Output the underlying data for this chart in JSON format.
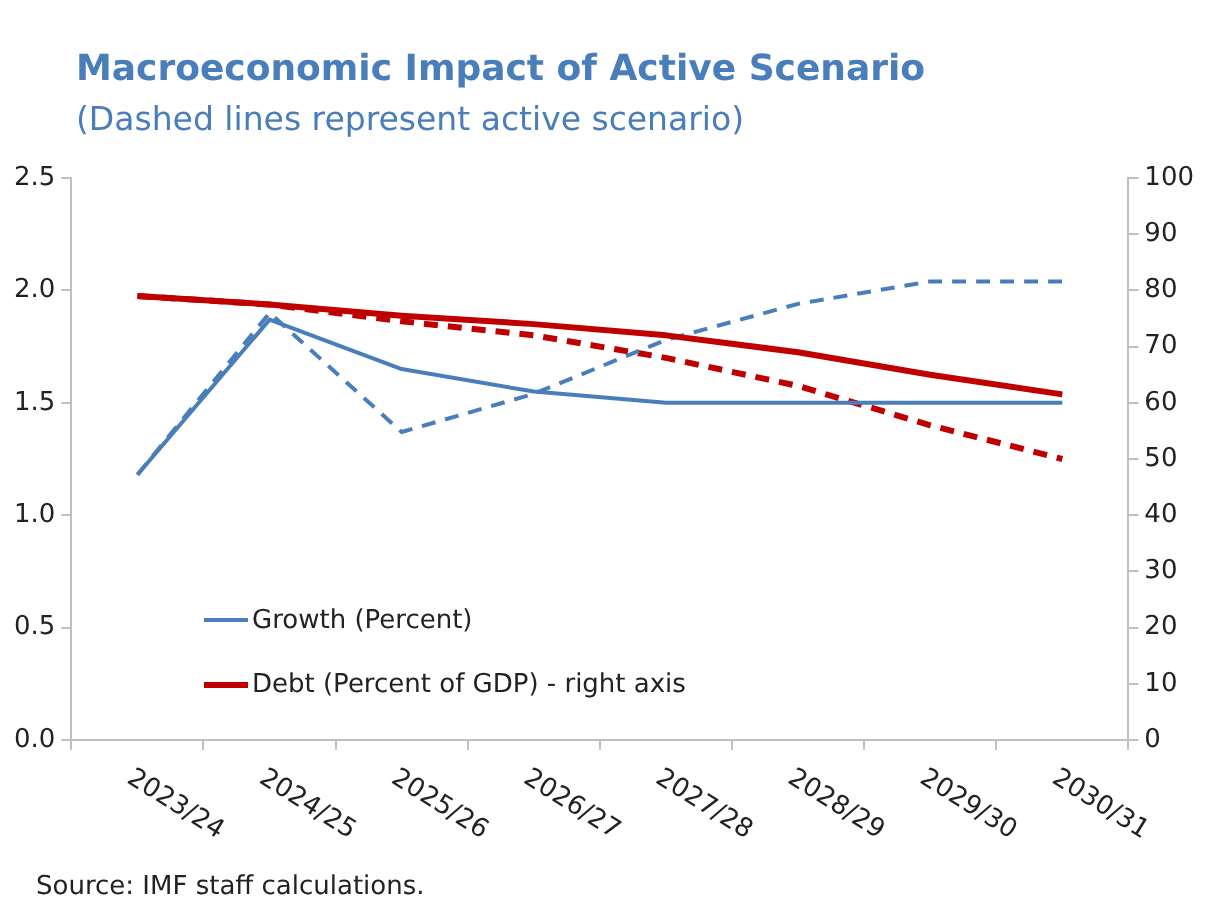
{
  "chart_data": {
    "type": "line",
    "title": "Macroeconomic Impact of Active Scenario",
    "subtitle": "(Dashed lines represent active scenario)",
    "categories": [
      "2023/24",
      "2024/25",
      "2025/26",
      "2026/27",
      "2027/28",
      "2028/29",
      "2029/30",
      "2030/31"
    ],
    "series": [
      {
        "name": "Growth (Percent)",
        "color": "#4a7ebb",
        "values": [
          1.18,
          1.87,
          1.65,
          1.55,
          1.5,
          1.5,
          1.5,
          1.5
        ]
      },
      {
        "name": "Debt (Percent of GDP) - right axis",
        "color": "#c00000",
        "axis": "y2",
        "values": [
          79,
          77.5,
          75.5,
          74,
          72,
          69,
          65,
          61.5
        ]
      },
      {
        "color": "#4a7ebb",
        "line_style": "dashed",
        "values": [
          1.18,
          1.9,
          1.37,
          1.54,
          1.78,
          1.94,
          2.04,
          2.04
        ]
      },
      {
        "color": "#c00000",
        "line_style": "dashed",
        "axis": "y2",
        "values": [
          79,
          77.5,
          74.5,
          72,
          68,
          63,
          56,
          50
        ]
      }
    ],
    "ylim": [
      0,
      2.5
    ],
    "yticks": [
      {
        "value": 0,
        "label": "0.0"
      },
      0.5,
      {
        "value": 1,
        "label": "1.0"
      },
      1.5,
      {
        "value": 2,
        "label": "2.0"
      },
      2.5
    ],
    "y2lim": [
      0,
      100
    ],
    "y2ticks": [
      0,
      10,
      20,
      30,
      40,
      50,
      60,
      70,
      80,
      90,
      100
    ],
    "legend": "bottom left",
    "line_style": "solid",
    "marker": "none",
    "annotations": [
      "Source: IMF staff calculations."
    ]
  }
}
